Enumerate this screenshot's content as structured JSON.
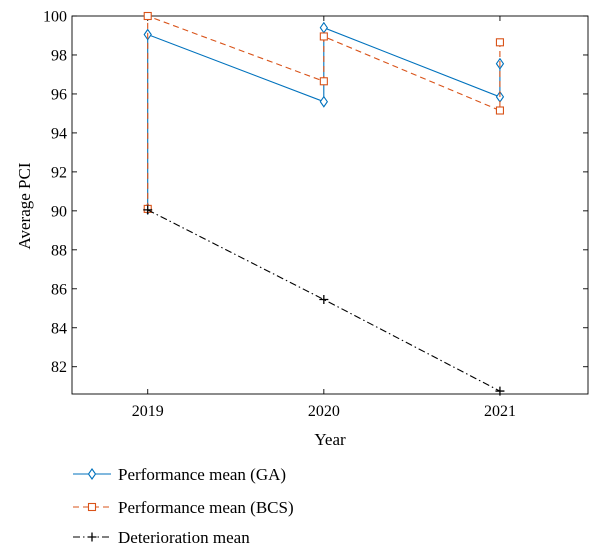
{
  "chart_data": {
    "type": "line",
    "xlabel": "Year",
    "ylabel": "Average PCI",
    "xlim": [
      2018.57,
      2021.5
    ],
    "ylim": [
      80.6,
      100
    ],
    "x_ticks": [
      2019,
      2020,
      2021
    ],
    "x_tick_labels": [
      "2019",
      "2020",
      "2021"
    ],
    "y_ticks": [
      82,
      84,
      86,
      88,
      90,
      92,
      94,
      96,
      98,
      100
    ],
    "y_tick_labels": [
      "82",
      "84",
      "86",
      "88",
      "90",
      "92",
      "94",
      "96",
      "98",
      "100"
    ],
    "grid": false,
    "legend_position": "bottom",
    "series": [
      {
        "name": "Performance mean (GA)",
        "color": "#0072bd",
        "line_style": "solid",
        "marker": "diamond",
        "points": [
          [
            2019,
            90.1
          ],
          [
            2019,
            99.05
          ],
          [
            2020,
            95.6
          ],
          [
            2020,
            99.4
          ],
          [
            2021,
            95.85
          ],
          [
            2021,
            97.55
          ]
        ]
      },
      {
        "name": "Performance mean (BCS)",
        "color": "#d95319",
        "line_style": "dashed",
        "marker": "square",
        "points": [
          [
            2019,
            90.1
          ],
          [
            2019,
            100.0
          ],
          [
            2020,
            96.65
          ],
          [
            2020,
            98.95
          ],
          [
            2021,
            95.15
          ],
          [
            2021,
            98.65
          ]
        ]
      },
      {
        "name": "Deterioration mean",
        "color": "#000000",
        "line_style": "dashdot",
        "marker": "plus",
        "points": [
          [
            2019,
            90.05
          ],
          [
            2020,
            85.45
          ],
          [
            2021,
            80.75
          ]
        ]
      }
    ]
  }
}
